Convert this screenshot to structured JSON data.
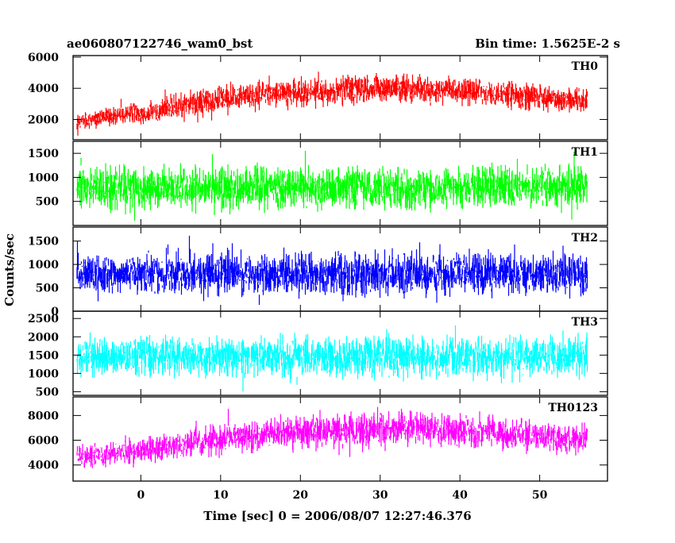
{
  "header": {
    "title": "ae060807122746_wam0_bst",
    "bin_time": "Bin time: 1.5625E-2 s"
  },
  "chart_data": {
    "type": "line",
    "title": "ae060807122746_wam0_bst",
    "xlabel": "Time [sec] 0 = 2006/08/07 12:27:46.376",
    "ylabel": "Counts/sec",
    "xlim": [
      -8.5,
      58.5
    ],
    "x_range": [
      -8.0,
      56.0
    ],
    "x_ticks": [
      0,
      10,
      20,
      30,
      40,
      50
    ],
    "x_tick_labels": [
      "0",
      "10",
      "20",
      "30",
      "40",
      "50"
    ],
    "grid": false,
    "panels": [
      {
        "label": "TH0",
        "color": "#ff0000",
        "ylim": [
          700,
          6100
        ],
        "y_ticks": [
          2000,
          4000,
          6000
        ],
        "y_tick_labels": [
          "2000",
          "4000",
          "6000"
        ],
        "envelope": {
          "x": [
            -8,
            -4,
            0,
            4,
            8,
            12,
            16,
            20,
            24,
            28,
            32,
            36,
            40,
            44,
            48,
            52,
            56
          ],
          "mean": [
            1900,
            2200,
            2400,
            2800,
            3150,
            3450,
            3600,
            3750,
            3850,
            3950,
            4000,
            3900,
            3850,
            3700,
            3500,
            3300,
            3200
          ],
          "spread": [
            1000,
            1100,
            1200,
            1300,
            1400,
            1500,
            1550,
            1600,
            1600,
            1650,
            1650,
            1600,
            1600,
            1550,
            1500,
            1450,
            1400
          ]
        }
      },
      {
        "label": "TH1",
        "color": "#00ff00",
        "ylim": [
          0,
          1750
        ],
        "y_ticks": [
          500,
          1000,
          1500
        ],
        "y_tick_labels": [
          "500",
          "1000",
          "1500"
        ],
        "envelope": {
          "x": [
            -8,
            56
          ],
          "mean": [
            780,
            780
          ],
          "spread": [
            800,
            800
          ]
        }
      },
      {
        "label": "TH2",
        "color": "#0000ff",
        "ylim": [
          0,
          1800
        ],
        "y_ticks": [
          0,
          500,
          1000,
          1500
        ],
        "y_tick_labels": [
          "0",
          "500",
          "1000",
          "1500"
        ],
        "envelope": {
          "x": [
            -8,
            56
          ],
          "mean": [
            800,
            800
          ],
          "spread": [
            820,
            820
          ]
        }
      },
      {
        "label": "TH3",
        "color": "#00ffff",
        "ylim": [
          400,
          2700
        ],
        "y_ticks": [
          500,
          1000,
          1500,
          2000,
          2500
        ],
        "y_tick_labels": [
          "500",
          "1000",
          "1500",
          "2000",
          "2500"
        ],
        "envelope": {
          "x": [
            -8,
            56
          ],
          "mean": [
            1450,
            1450
          ],
          "spread": [
            1000,
            1000
          ]
        }
      },
      {
        "label": "TH0123",
        "color": "#ff00ff",
        "ylim": [
          2700,
          9500
        ],
        "y_ticks": [
          4000,
          6000,
          8000
        ],
        "y_tick_labels": [
          "4000",
          "6000",
          "8000"
        ],
        "envelope": {
          "x": [
            -8,
            -4,
            0,
            4,
            8,
            12,
            16,
            20,
            24,
            28,
            32,
            36,
            40,
            44,
            48,
            52,
            56
          ],
          "mean": [
            4600,
            4950,
            5200,
            5600,
            5950,
            6250,
            6450,
            6650,
            6750,
            6850,
            6900,
            6800,
            6750,
            6600,
            6400,
            6200,
            6100
          ],
          "spread": [
            1700,
            1800,
            1900,
            2000,
            2100,
            2200,
            2300,
            2400,
            2400,
            2450,
            2450,
            2400,
            2400,
            2350,
            2300,
            2250,
            2200
          ]
        }
      }
    ]
  }
}
